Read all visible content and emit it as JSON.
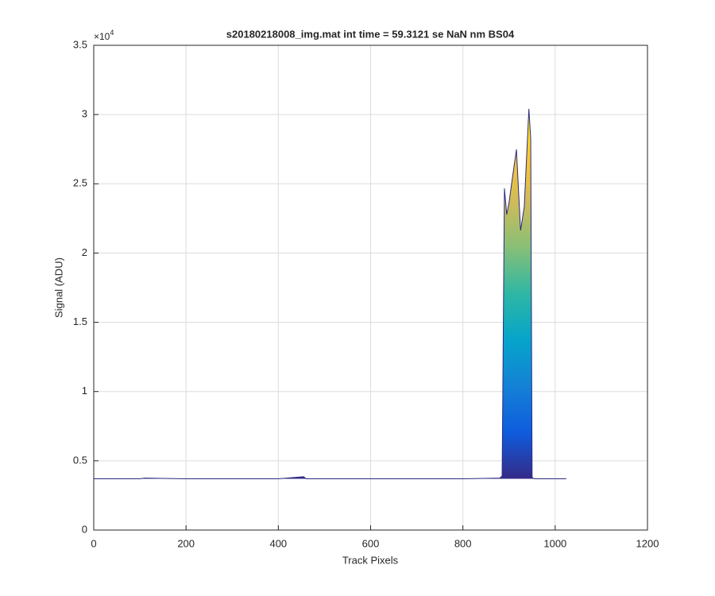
{
  "chart_data": {
    "type": "area",
    "title": "s20180218008_img.mat int time = 59.3121 se  NaN nm BS04",
    "x_label": "Track Pixels",
    "y_label": "Signal (ADU)",
    "y_multiplier": {
      "base": "×10",
      "exponent": "4"
    },
    "x": [
      0,
      100,
      110,
      160,
      200,
      300,
      400,
      455,
      460,
      500,
      600,
      700,
      800,
      880,
      885,
      890,
      895,
      900,
      907,
      916,
      925,
      933,
      943,
      947,
      950,
      955,
      1000,
      1024
    ],
    "values": [
      3700,
      3700,
      3750,
      3720,
      3700,
      3700,
      3700,
      3850,
      3700,
      3700,
      3700,
      3700,
      3700,
      3750,
      3900,
      24670,
      22780,
      23640,
      25360,
      27480,
      21630,
      23350,
      30410,
      28230,
      3800,
      3700,
      3700,
      3700
    ],
    "line_color": "#2b2a7e",
    "colormap": [
      "#352a87",
      "#0f5cdd",
      "#1481d6",
      "#06a4ca",
      "#2eb7a4",
      "#87bf77",
      "#d1bb59",
      "#fec832",
      "#f9fb0e"
    ],
    "xlim": [
      0,
      1200
    ],
    "xticks": [
      0,
      200,
      400,
      600,
      800,
      1000,
      1200
    ],
    "ylim": [
      0,
      35000
    ],
    "yticks": [
      {
        "value": 0,
        "label": "0"
      },
      {
        "value": 5000,
        "label": "0.5"
      },
      {
        "value": 10000,
        "label": "1"
      },
      {
        "value": 15000,
        "label": "1.5"
      },
      {
        "value": 20000,
        "label": "2"
      },
      {
        "value": 25000,
        "label": "2.5"
      },
      {
        "value": 30000,
        "label": "3"
      },
      {
        "value": 35000,
        "label": "3.5"
      }
    ],
    "grid": true
  }
}
